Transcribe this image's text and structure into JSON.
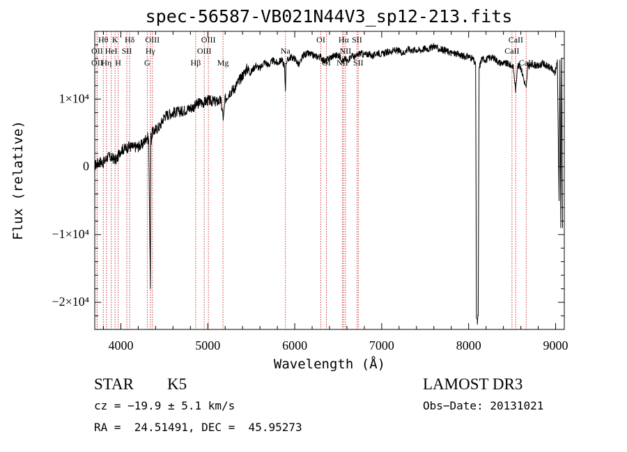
{
  "chart_data": {
    "type": "line",
    "title": "spec-56587-VB021N44V3_sp12-213.fits",
    "xlabel": "Wavelength (Å)",
    "ylabel": "Flux (relative)",
    "xlim": [
      3700,
      9100
    ],
    "ylim": [
      -24000,
      20000
    ],
    "xticks": [
      4000,
      5000,
      6000,
      7000,
      8000,
      9000
    ],
    "xtick_labels": [
      "4000",
      "5000",
      "6000",
      "7000",
      "8000",
      "9000"
    ],
    "yticks": [
      -20000,
      -10000,
      0,
      10000
    ],
    "ytick_labels": [
      "−2×10⁴",
      "−1×10⁴",
      "0",
      "1×10⁴"
    ],
    "series": [
      {
        "name": "spectrum",
        "x": [
          3700,
          3760,
          3800,
          3850,
          3900,
          3950,
          4000,
          4050,
          4100,
          4150,
          4200,
          4250,
          4300,
          4320,
          4340,
          4345,
          4350,
          4360,
          4400,
          4450,
          4500,
          4600,
          4700,
          4800,
          4860,
          4900,
          4950,
          5000,
          5050,
          5100,
          5150,
          5180,
          5200,
          5250,
          5300,
          5350,
          5400,
          5450,
          5500,
          5550,
          5600,
          5650,
          5700,
          5750,
          5800,
          5850,
          5880,
          5893,
          5900,
          5950,
          6000,
          6050,
          6100,
          6150,
          6200,
          6250,
          6300,
          6350,
          6400,
          6450,
          6500,
          6550,
          6563,
          6580,
          6600,
          6650,
          6700,
          6750,
          6800,
          6850,
          6900,
          6950,
          7000,
          7050,
          7100,
          7150,
          7200,
          7250,
          7300,
          7350,
          7400,
          7450,
          7500,
          7550,
          7600,
          7650,
          7700,
          7750,
          7800,
          7850,
          7900,
          7950,
          8000,
          8050,
          8080,
          8090,
          8100,
          8110,
          8120,
          8150,
          8200,
          8250,
          8300,
          8350,
          8400,
          8450,
          8498,
          8510,
          8542,
          8560,
          8600,
          8662,
          8680,
          8700,
          8750,
          8800,
          8850,
          8900,
          8950,
          8990,
          9000,
          9020,
          9040,
          9050,
          9060,
          9070,
          9080
        ],
        "y": [
          200,
          800,
          600,
          1500,
          1300,
          1000,
          2500,
          2700,
          3000,
          2900,
          3000,
          3300,
          4500,
          4000,
          -18000,
          5000,
          4000,
          5000,
          5500,
          6000,
          7500,
          8000,
          8200,
          8700,
          9000,
          9500,
          9500,
          9800,
          9700,
          9600,
          9800,
          7000,
          10000,
          11000,
          11500,
          12500,
          13500,
          14500,
          14000,
          15000,
          14500,
          15500,
          15000,
          15700,
          15300,
          15800,
          15000,
          11500,
          15500,
          16200,
          16000,
          15000,
          16500,
          16700,
          16500,
          16300,
          16200,
          15500,
          16100,
          16400,
          16500,
          15800,
          15600,
          16000,
          15600,
          16400,
          16200,
          16800,
          16500,
          16700,
          16300,
          16900,
          16600,
          16900,
          17000,
          17200,
          17100,
          16800,
          17400,
          17200,
          17300,
          17200,
          17500,
          17400,
          17900,
          17400,
          17300,
          17100,
          16800,
          16700,
          16500,
          16300,
          16300,
          15900,
          15000,
          -22000,
          -23000,
          -22000,
          14500,
          16000,
          15800,
          16200,
          16000,
          15400,
          15300,
          15200,
          14900,
          15000,
          11200,
          15000,
          14700,
          11500,
          15000,
          14900,
          15100,
          14800,
          15300,
          14900,
          14500,
          13800,
          14200,
          15800,
          -5000,
          15800,
          -9000,
          16000,
          -9000
        ]
      }
    ],
    "emission_lines": [
      {
        "label": "OII",
        "x": 3727,
        "row": 2
      },
      {
        "label": "Hθ",
        "x": 3798,
        "row": 1
      },
      {
        "label": "OII",
        "x": 3727,
        "row": 3
      },
      {
        "label": "Hη",
        "x": 3835,
        "row": 3
      },
      {
        "label": "HeI",
        "x": 3889,
        "row": 2
      },
      {
        "label": "K",
        "x": 3934,
        "row": 1
      },
      {
        "label": "H",
        "x": 3969,
        "row": 3
      },
      {
        "label": "SII",
        "x": 4069,
        "row": 2
      },
      {
        "label": "Hδ",
        "x": 4102,
        "row": 1
      },
      {
        "label": "G",
        "x": 4304,
        "row": 3
      },
      {
        "label": "Hγ",
        "x": 4340,
        "row": 2
      },
      {
        "label": "OIII",
        "x": 4363,
        "row": 1
      },
      {
        "label": "Hβ",
        "x": 4861,
        "row": 3
      },
      {
        "label": "OIII",
        "x": 4959,
        "row": 2
      },
      {
        "label": "OIII",
        "x": 5007,
        "row": 1
      },
      {
        "label": "Mg",
        "x": 5175,
        "row": 3
      },
      {
        "label": "Na",
        "x": 5893,
        "row": 2
      },
      {
        "label": "OI",
        "x": 6300,
        "row": 1
      },
      {
        "label": "OI",
        "x": 6364,
        "row": 3
      },
      {
        "label": "NII",
        "x": 6548,
        "row": 3
      },
      {
        "label": "Hα",
        "x": 6563,
        "row": 1
      },
      {
        "label": "NII",
        "x": 6583,
        "row": 2
      },
      {
        "label": "SII",
        "x": 6716,
        "row": 1
      },
      {
        "label": "SII",
        "x": 6731,
        "row": 3
      },
      {
        "label": "CaII",
        "x": 8498,
        "row": 2
      },
      {
        "label": "CaII",
        "x": 8542,
        "row": 1
      },
      {
        "label": "CaII",
        "x": 8662,
        "row": 3
      }
    ]
  },
  "info": {
    "object_class": "STAR",
    "subclass": "K5",
    "survey": "LAMOST DR3",
    "cz": "cz = −19.9 ± 5.1 km/s",
    "obs_date": "Obs−Date: 20131021",
    "coords": "RA =  24.51491, DEC =  45.95273"
  }
}
